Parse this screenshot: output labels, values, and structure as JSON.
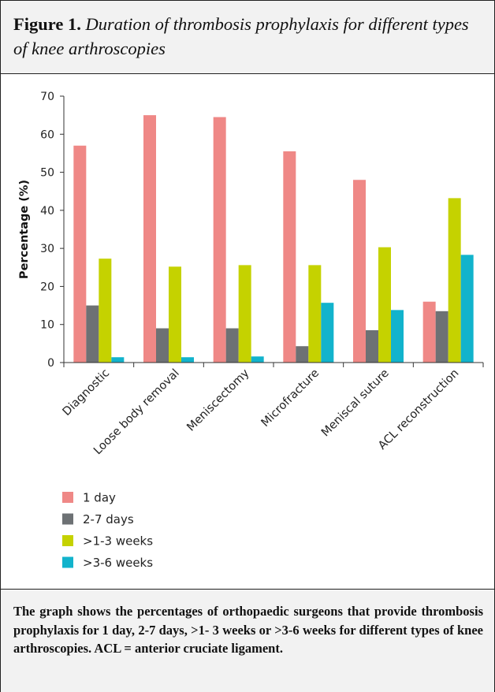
{
  "figure": {
    "label": "Figure 1.",
    "title": "Duration of thrombosis prophylaxis for different types of knee arthroscopies",
    "caption": "The graph shows the percentages of orthopaedic surgeons that provide thrombosis prophylaxis for 1 day, 2-7 days, >1- 3 weeks or >3-6 weeks for different types of knee arthroscopies. ACL = anterior cruciate ligament."
  },
  "colors": {
    "series": [
      "#ef8886",
      "#6d7174",
      "#c5d200",
      "#12b3cc"
    ],
    "axis": "#333333"
  },
  "chart_data": {
    "type": "bar",
    "categories": [
      "Diagnostic",
      "Loose body removal",
      "Meniscectomy",
      "Microfracture",
      "Meniscal suture",
      "ACL reconstruction"
    ],
    "series": [
      {
        "name": "1 day",
        "values": [
          57,
          65,
          64.5,
          55.5,
          48,
          16
        ]
      },
      {
        "name": "2-7 days",
        "values": [
          15,
          9,
          9,
          4.3,
          8.5,
          13.5
        ]
      },
      {
        "name": ">1-3 weeks",
        "values": [
          27.3,
          25.2,
          25.6,
          25.6,
          30.3,
          43.2
        ]
      },
      {
        "name": ">3-6 weeks",
        "values": [
          1.4,
          1.4,
          1.6,
          15.7,
          13.8,
          28.3
        ]
      }
    ],
    "ylabel": "Percentage (%)",
    "xlabel": "",
    "ylim": [
      0,
      70
    ],
    "yticks": [
      0,
      10,
      20,
      30,
      40,
      50,
      60,
      70
    ],
    "grid": false,
    "legend_position": "bottom-left"
  }
}
